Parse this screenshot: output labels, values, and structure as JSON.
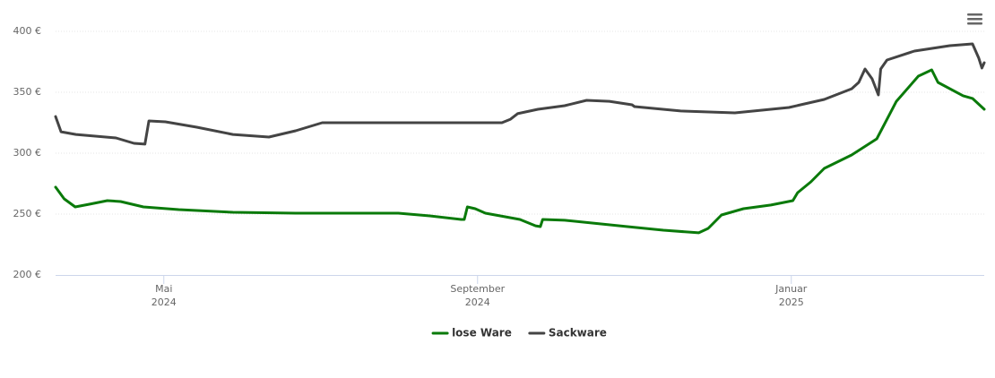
{
  "chart_data": {
    "type": "line",
    "ylim": [
      200,
      400
    ],
    "yticks": [
      {
        "value": 200,
        "label": "200 €"
      },
      {
        "value": 250,
        "label": "250 €"
      },
      {
        "value": 300,
        "label": "300 €"
      },
      {
        "value": 350,
        "label": "350 €"
      },
      {
        "value": 400,
        "label": "400 €"
      }
    ],
    "xlim": [
      2.62,
      14.46
    ],
    "xticks": [
      {
        "value": 4,
        "label": "Mai 2024"
      },
      {
        "value": 8,
        "label": "September 2024"
      },
      {
        "value": 12,
        "label": "Januar 2025"
      }
    ],
    "grid": true,
    "legend": "bottom",
    "series": [
      {
        "name": "lose Ware",
        "color": "#0a7a0a",
        "x": [
          2.62,
          2.73,
          2.87,
          3.05,
          3.28,
          3.45,
          3.74,
          4.19,
          4.88,
          5.68,
          6.99,
          7.39,
          7.79,
          7.83,
          7.87,
          7.97,
          8.1,
          8.54,
          8.74,
          8.8,
          8.83,
          9.11,
          9.91,
          10.37,
          10.82,
          10.94,
          11.11,
          11.39,
          11.74,
          12.02,
          12.08,
          12.25,
          12.42,
          12.77,
          13.09,
          13.34,
          13.62,
          13.79,
          13.87,
          14.19,
          14.31,
          14.46
        ],
        "values": [
          272.1,
          262.5,
          255.9,
          258.1,
          261.0,
          260.3,
          255.9,
          253.7,
          251.5,
          250.7,
          250.7,
          248.5,
          245.6,
          245.6,
          255.9,
          254.4,
          250.7,
          245.6,
          240.4,
          239.7,
          245.6,
          244.9,
          239.7,
          236.8,
          234.6,
          238.2,
          249.3,
          254.4,
          257.4,
          261.0,
          267.6,
          276.5,
          287.5,
          298.5,
          311.8,
          342.6,
          363.2,
          368.4,
          358.1,
          347.1,
          344.9,
          336.0
        ]
      },
      {
        "name": "Sackware",
        "color": "#444444",
        "x": [
          2.62,
          2.69,
          2.88,
          3.39,
          3.62,
          3.76,
          3.81,
          4.02,
          4.42,
          4.88,
          5.34,
          5.68,
          6.02,
          6.71,
          8.31,
          8.42,
          8.51,
          8.77,
          9.11,
          9.39,
          9.68,
          9.97,
          10.0,
          10.59,
          11.28,
          11.97,
          12.42,
          12.77,
          12.86,
          12.94,
          13.03,
          13.11,
          13.14,
          13.22,
          13.57,
          14.02,
          14.31,
          14.39,
          14.43,
          14.46
        ],
        "values": [
          330.1,
          317.6,
          315.4,
          312.5,
          308.1,
          307.4,
          326.5,
          325.7,
          321.3,
          315.4,
          313.2,
          318.4,
          325.0,
          325.0,
          325.0,
          327.9,
          332.4,
          336.0,
          339.0,
          343.4,
          342.6,
          339.7,
          338.2,
          334.6,
          333.1,
          337.5,
          344.1,
          352.9,
          358.1,
          369.1,
          361.0,
          347.8,
          369.1,
          376.5,
          383.8,
          388.2,
          389.7,
          378.0,
          369.9,
          374.3
        ]
      }
    ]
  }
}
